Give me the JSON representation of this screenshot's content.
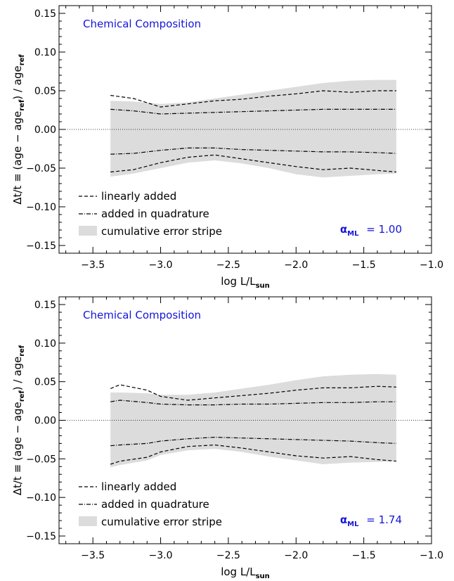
{
  "chart_data": [
    {
      "type": "area",
      "title": "Chemical Composition",
      "xlabel": "log L/L",
      "xlabel_sub": "sun",
      "ylabel_parts": {
        "pre": "Δt/t ≡ (age − age",
        "sub1": "ref",
        "mid": ") / age",
        "sub2": "ref"
      },
      "xlim": [
        -3.75,
        -1.0
      ],
      "ylim": [
        -0.16,
        0.16
      ],
      "xticks": [
        -3.5,
        -3.0,
        -2.5,
        -2.0,
        -1.5,
        -1.0
      ],
      "xtick_labels": [
        "−3.5",
        "−3.0",
        "−2.5",
        "−2.0",
        "−1.5",
        "−1.0"
      ],
      "yticks": [
        -0.15,
        -0.1,
        -0.05,
        0.0,
        0.05,
        0.1,
        0.15
      ],
      "ytick_labels": [
        "−0.15",
        "−0.10",
        "−0.05",
        "0.00",
        "0.05",
        "0.10",
        "0.15"
      ],
      "annotation": {
        "symbol": "α",
        "sub": "ML",
        "value": "= 1.00"
      },
      "legend_position": "bottom-left",
      "legend": [
        {
          "label": "linearly added",
          "style": "dashed"
        },
        {
          "label": "added in quadrature",
          "style": "dash-dot"
        },
        {
          "label": "cumulative error stripe",
          "style": "fill"
        }
      ],
      "colors": {
        "title": "#1515d8",
        "annotation": "#1515d8",
        "stripe": "#dcdcdc"
      },
      "x": [
        -3.37,
        -3.2,
        -3.0,
        -2.8,
        -2.6,
        -2.4,
        -2.2,
        -2.0,
        -1.8,
        -1.6,
        -1.4,
        -1.26
      ],
      "series": [
        {
          "name": "linearly added",
          "role": "upper",
          "style": "dashed",
          "values": [
            0.044,
            0.04,
            0.029,
            0.033,
            0.037,
            0.039,
            0.043,
            0.046,
            0.05,
            0.048,
            0.05,
            0.05
          ]
        },
        {
          "name": "linearly added",
          "role": "lower",
          "style": "dashed",
          "values": [
            -0.055,
            -0.052,
            -0.043,
            -0.036,
            -0.033,
            -0.038,
            -0.043,
            -0.048,
            -0.052,
            -0.05,
            -0.053,
            -0.055
          ]
        },
        {
          "name": "added in quadrature",
          "role": "upper",
          "style": "dash-dot",
          "values": [
            0.026,
            0.024,
            0.02,
            0.021,
            0.022,
            0.023,
            0.024,
            0.025,
            0.026,
            0.026,
            0.026,
            0.026
          ]
        },
        {
          "name": "added in quadrature",
          "role": "lower",
          "style": "dash-dot",
          "values": [
            -0.032,
            -0.031,
            -0.027,
            -0.024,
            -0.024,
            -0.026,
            -0.027,
            -0.028,
            -0.029,
            -0.029,
            -0.03,
            -0.031
          ]
        },
        {
          "name": "cumulative error stripe",
          "role": "upper",
          "style": "fill",
          "values": [
            0.037,
            0.036,
            0.033,
            0.035,
            0.04,
            0.045,
            0.05,
            0.055,
            0.06,
            0.063,
            0.064,
            0.064
          ]
        },
        {
          "name": "cumulative error stripe",
          "role": "lower",
          "style": "fill",
          "values": [
            -0.061,
            -0.057,
            -0.05,
            -0.043,
            -0.04,
            -0.044,
            -0.05,
            -0.058,
            -0.062,
            -0.06,
            -0.058,
            -0.057
          ]
        }
      ]
    },
    {
      "type": "area",
      "title": "Chemical Composition",
      "xlabel": "log L/L",
      "xlabel_sub": "sun",
      "ylabel_parts": {
        "pre": "Δt/t ≡ (age − age",
        "sub1": "ref",
        "mid": ") / age",
        "sub2": "ref"
      },
      "xlim": [
        -3.75,
        -1.0
      ],
      "ylim": [
        -0.16,
        0.16
      ],
      "xticks": [
        -3.5,
        -3.0,
        -2.5,
        -2.0,
        -1.5,
        -1.0
      ],
      "xtick_labels": [
        "−3.5",
        "−3.0",
        "−2.5",
        "−2.0",
        "−1.5",
        "−1.0"
      ],
      "yticks": [
        -0.15,
        -0.1,
        -0.05,
        0.0,
        0.05,
        0.1,
        0.15
      ],
      "ytick_labels": [
        "−0.15",
        "−0.10",
        "−0.05",
        "0.00",
        "0.05",
        "0.10",
        "0.15"
      ],
      "annotation": {
        "symbol": "α",
        "sub": "ML",
        "value": "= 1.74"
      },
      "legend_position": "bottom-left",
      "legend": [
        {
          "label": "linearly added",
          "style": "dashed"
        },
        {
          "label": "added in quadrature",
          "style": "dash-dot"
        },
        {
          "label": "cumulative error stripe",
          "style": "fill"
        }
      ],
      "colors": {
        "title": "#1515d8",
        "annotation": "#1515d8",
        "stripe": "#dcdcdc"
      },
      "x": [
        -3.37,
        -3.3,
        -3.1,
        -3.0,
        -2.8,
        -2.6,
        -2.4,
        -2.2,
        -2.0,
        -1.8,
        -1.6,
        -1.4,
        -1.26
      ],
      "series": [
        {
          "name": "linearly added",
          "role": "upper",
          "style": "dashed",
          "values": [
            0.041,
            0.046,
            0.039,
            0.031,
            0.026,
            0.029,
            0.032,
            0.035,
            0.039,
            0.042,
            0.042,
            0.044,
            0.043
          ]
        },
        {
          "name": "linearly added",
          "role": "lower",
          "style": "dashed",
          "values": [
            -0.057,
            -0.053,
            -0.048,
            -0.041,
            -0.034,
            -0.032,
            -0.036,
            -0.041,
            -0.046,
            -0.049,
            -0.047,
            -0.051,
            -0.053
          ]
        },
        {
          "name": "added in quadrature",
          "role": "upper",
          "style": "dash-dot",
          "values": [
            0.024,
            0.026,
            0.023,
            0.021,
            0.02,
            0.02,
            0.021,
            0.021,
            0.022,
            0.023,
            0.023,
            0.024,
            0.024
          ]
        },
        {
          "name": "added in quadrature",
          "role": "lower",
          "style": "dash-dot",
          "values": [
            -0.033,
            -0.032,
            -0.03,
            -0.027,
            -0.024,
            -0.022,
            -0.023,
            -0.024,
            -0.025,
            -0.026,
            -0.027,
            -0.029,
            -0.03
          ]
        },
        {
          "name": "cumulative error stripe",
          "role": "upper",
          "style": "fill",
          "values": [
            0.036,
            0.036,
            0.035,
            0.033,
            0.033,
            0.036,
            0.041,
            0.046,
            0.052,
            0.057,
            0.059,
            0.06,
            0.059
          ]
        },
        {
          "name": "cumulative error stripe",
          "role": "lower",
          "style": "fill",
          "values": [
            -0.061,
            -0.058,
            -0.052,
            -0.045,
            -0.039,
            -0.037,
            -0.041,
            -0.047,
            -0.052,
            -0.057,
            -0.055,
            -0.054,
            -0.053
          ]
        }
      ]
    }
  ]
}
